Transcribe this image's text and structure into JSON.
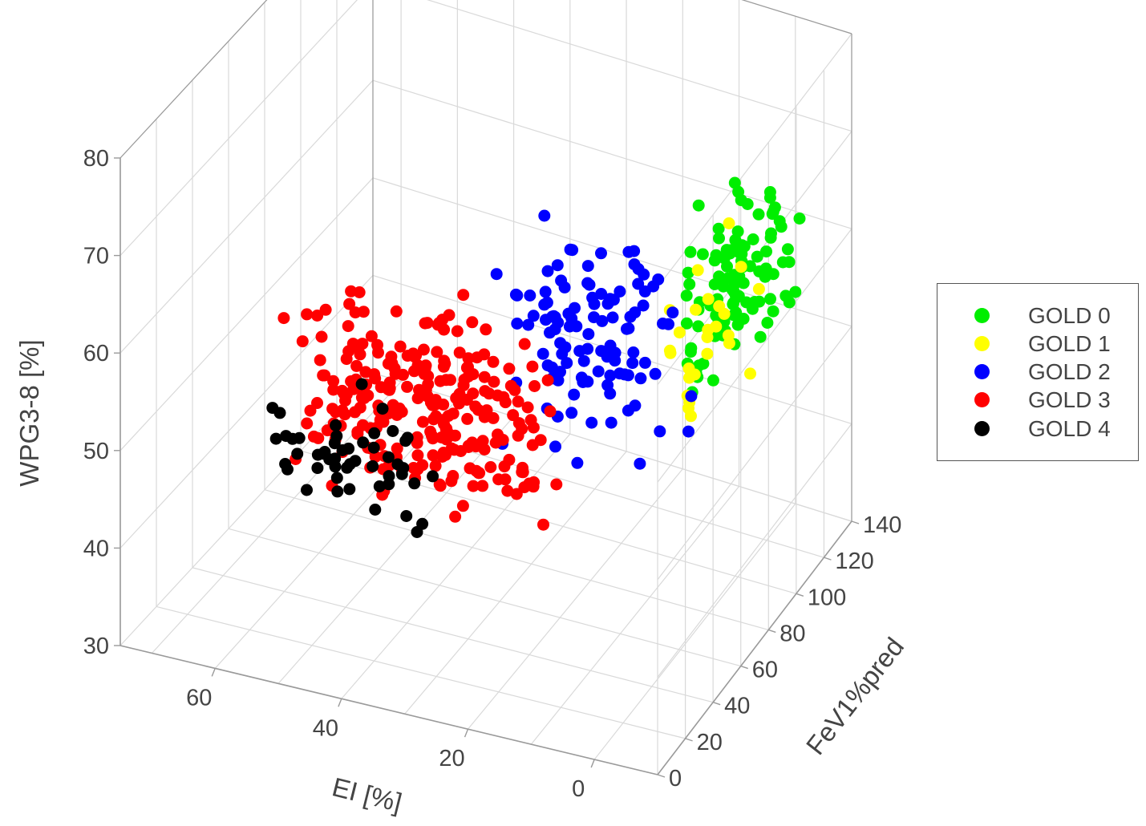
{
  "chart_data": {
    "type": "scatter",
    "variant": "3d-scatter",
    "axes": {
      "x": {
        "label": "EI [%]",
        "ticks": [
          0,
          20,
          40,
          60
        ],
        "range": [
          -10,
          75
        ]
      },
      "y": {
        "label": "FeV1%pred",
        "ticks": [
          0,
          20,
          40,
          60,
          80,
          100,
          120,
          140
        ],
        "range": [
          0,
          140
        ]
      },
      "z": {
        "label": "WPG3-8 [%]",
        "ticks": [
          30,
          40,
          50,
          60,
          70,
          80
        ],
        "range": [
          30,
          80
        ]
      }
    },
    "grid": true,
    "legend_position": "right",
    "series": [
      {
        "name": "GOLD 0",
        "color": "#00ee00",
        "n": 110,
        "x_range": [
          -5,
          10
        ],
        "y_range": [
          80,
          135
        ],
        "z_range": [
          48,
          68
        ]
      },
      {
        "name": "GOLD 1",
        "color": "#ffff00",
        "n": 26,
        "x_range": [
          -3,
          12
        ],
        "y_range": [
          80,
          125
        ],
        "z_range": [
          45,
          65
        ]
      },
      {
        "name": "GOLD 2",
        "color": "#0000ff",
        "n": 110,
        "x_range": [
          -5,
          38
        ],
        "y_range": [
          50,
          80
        ],
        "z_range": [
          45,
          72
        ]
      },
      {
        "name": "GOLD 3",
        "color": "#ff0000",
        "n": 260,
        "x_range": [
          5,
          65
        ],
        "y_range": [
          30,
          50
        ],
        "z_range": [
          40,
          66
        ]
      },
      {
        "name": "GOLD 4",
        "color": "#000000",
        "n": 50,
        "x_range": [
          20,
          70
        ],
        "y_range": [
          15,
          30
        ],
        "z_range": [
          42,
          58
        ]
      }
    ]
  },
  "legend": {
    "items": [
      {
        "label": "GOLD 0",
        "color": "#00ee00"
      },
      {
        "label": "GOLD 1",
        "color": "#ffff00"
      },
      {
        "label": "GOLD 2",
        "color": "#0000ff"
      },
      {
        "label": "GOLD 3",
        "color": "#ff0000"
      },
      {
        "label": "GOLD 4",
        "color": "#000000"
      }
    ]
  }
}
